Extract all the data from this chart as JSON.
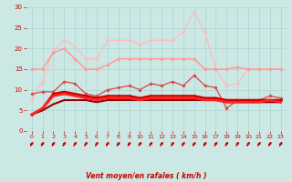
{
  "xlabel": "Vent moyen/en rafales ( km/h )",
  "xlim": [
    -0.5,
    23.5
  ],
  "ylim": [
    0,
    30
  ],
  "xticks": [
    0,
    1,
    2,
    3,
    4,
    5,
    6,
    7,
    8,
    9,
    10,
    11,
    12,
    13,
    14,
    15,
    16,
    17,
    18,
    19,
    20,
    21,
    22,
    23
  ],
  "yticks": [
    0,
    5,
    10,
    15,
    20,
    25,
    30
  ],
  "bg_color": "#cce8e4",
  "grid_color": "#aad4d0",
  "lines": [
    {
      "y": [
        7.5,
        12,
        19.5,
        22,
        20.5,
        17.5,
        17.5,
        22,
        22,
        22,
        21,
        22,
        22,
        22,
        24,
        29,
        24,
        15,
        11,
        11.5,
        15,
        15,
        15,
        15
      ],
      "color": "#ffbbbb",
      "lw": 0.9,
      "marker": "D",
      "ms": 1.8,
      "zorder": 2
    },
    {
      "y": [
        15,
        15,
        19,
        20,
        17.5,
        15,
        15,
        16,
        17.5,
        17.5,
        17.5,
        17.5,
        17.5,
        17.5,
        17.5,
        17.5,
        15,
        15,
        15,
        15.5,
        15,
        15,
        15,
        15
      ],
      "color": "#ff9999",
      "lw": 1.1,
      "marker": "D",
      "ms": 1.8,
      "zorder": 3
    },
    {
      "y": [
        9,
        9.5,
        9.5,
        12,
        11.5,
        9,
        8.5,
        10,
        10.5,
        11,
        10,
        11.5,
        11,
        12,
        11,
        13.5,
        11,
        10.5,
        5.5,
        7.5,
        7.5,
        7.5,
        8.5,
        8
      ],
      "color": "#dd4444",
      "lw": 0.9,
      "marker": "D",
      "ms": 1.8,
      "zorder": 4
    },
    {
      "y": [
        4,
        5.5,
        9,
        9.5,
        9,
        8.5,
        8,
        8.5,
        8.5,
        8.5,
        8,
        8.5,
        8.5,
        8.5,
        8.5,
        8.5,
        8,
        8,
        7.5,
        7.5,
        7.5,
        7.5,
        7.5,
        7.5
      ],
      "color": "#cc0000",
      "lw": 1.8,
      "marker": "D",
      "ms": 1.5,
      "zorder": 5
    },
    {
      "y": [
        4,
        5.5,
        8.5,
        9,
        8.5,
        8,
        7.5,
        8,
        8,
        8,
        7.5,
        8,
        8,
        8,
        8,
        8,
        7.5,
        7.5,
        7,
        7,
        7,
        7,
        7.5,
        7
      ],
      "color": "#ff2222",
      "lw": 1.8,
      "marker": null,
      "ms": 0,
      "zorder": 5
    },
    {
      "y": [
        4,
        5,
        6.5,
        7.5,
        7.5,
        7.5,
        7,
        7.5,
        7.5,
        7.5,
        7.5,
        7.5,
        7.5,
        7.5,
        7.5,
        7.5,
        7.5,
        7.5,
        7,
        7,
        7,
        7,
        7,
        7
      ],
      "color": "#990000",
      "lw": 1.5,
      "marker": null,
      "ms": 0,
      "zorder": 4
    }
  ]
}
